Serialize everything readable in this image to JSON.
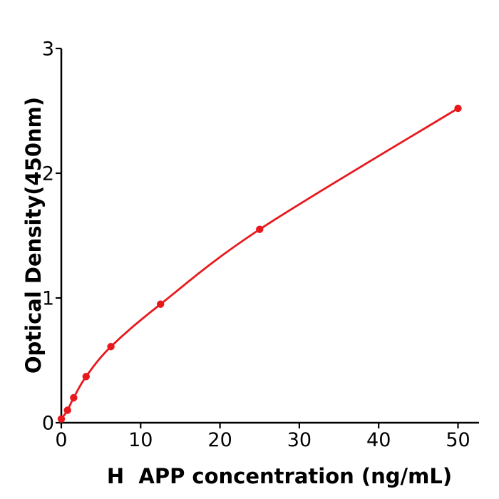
{
  "figure": {
    "background_color": "#ffffff",
    "axis_color": "#000000",
    "curve_color": "#e8191d"
  },
  "chart_data": {
    "type": "line",
    "title": "",
    "xlabel": "H  APP concentration (ng/mL)",
    "ylabel": "Optical Density(450nm)",
    "series": [
      {
        "name": "standard-curve",
        "color": "#e8191d",
        "marker": "circle",
        "points": [
          {
            "x": 0,
            "y": 0.03
          },
          {
            "x": 0.78,
            "y": 0.1
          },
          {
            "x": 1.56,
            "y": 0.2
          },
          {
            "x": 3.125,
            "y": 0.37
          },
          {
            "x": 6.25,
            "y": 0.61
          },
          {
            "x": 12.5,
            "y": 0.95
          },
          {
            "x": 25,
            "y": 1.55
          },
          {
            "x": 50,
            "y": 2.52
          }
        ]
      }
    ],
    "xticks": [
      0,
      10,
      20,
      30,
      40,
      50
    ],
    "yticks": [
      0,
      1,
      2,
      3
    ],
    "xlim": [
      0,
      52.7
    ],
    "ylim": [
      0,
      3
    ],
    "grid": false,
    "legend": "none"
  }
}
